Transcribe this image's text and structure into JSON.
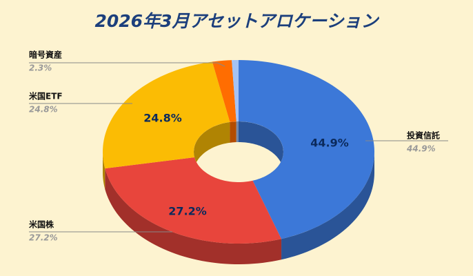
{
  "chart_data": {
    "type": "donut3d",
    "title": "2026年3月アセットアロケーション",
    "categories": [
      "投資信託",
      "米国株",
      "米国ETF",
      "暗号資産",
      null
    ],
    "values": [
      44.9,
      27.2,
      24.8,
      2.3,
      0.8
    ],
    "value_labels": [
      "44.9%",
      "27.2%",
      "24.8%",
      "2.3%",
      null
    ],
    "colors": [
      "#3c78d8",
      "#e8453c",
      "#fbbc04",
      "#ff6d01",
      "#a4c2f4"
    ]
  }
}
